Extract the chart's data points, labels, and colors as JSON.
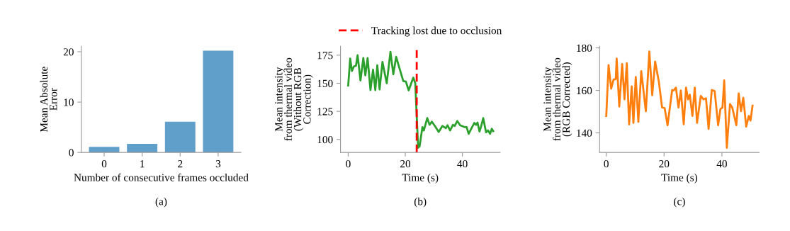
{
  "chart_data": [
    {
      "type": "bar",
      "categories": [
        "0",
        "1",
        "2",
        "3"
      ],
      "values": [
        1.1,
        1.7,
        6.1,
        20.2
      ],
      "color": "#619fcb",
      "ylabel": "Mean Absolute\nError",
      "xlabel": "Number of consecutive frames occluded",
      "annotations": [
        "(a)"
      ],
      "ylim": [
        0,
        21.1
      ],
      "yticks": [
        0,
        10,
        20
      ],
      "grid": false,
      "legend": false
    },
    {
      "type": "line",
      "xlabel": "Time (s)",
      "ylabel": "Mean intensity\nfrom thermal video\n(Without RGB\nCorrection)",
      "annotations": [
        "(b)"
      ],
      "x": [
        0,
        0.7,
        1.3,
        2,
        2.7,
        3.3,
        4.3,
        5.3,
        6,
        6.8,
        7.8,
        8.7,
        9.5,
        10.2,
        11,
        12,
        13.5,
        14.8,
        15.8,
        16.8,
        18,
        19.3,
        20.2,
        21.2,
        22.8,
        23.5,
        24,
        24.5,
        25,
        26,
        26.5,
        27.7,
        28.5,
        29.3,
        30.5,
        31.7,
        33,
        34.2,
        34.8,
        35.7,
        36.7,
        37.3,
        38.2,
        39.2,
        40.7,
        41.5,
        42.2,
        43.3,
        44.2,
        44.8,
        45.3,
        46,
        46.5,
        47.3,
        48.3,
        49,
        49.7,
        50.3,
        50.8
      ],
      "series": [
        {
          "color": "#2ca02c",
          "values": [
            148,
            172,
            161,
            165,
            165.5,
            175,
            152.5,
            172.5,
            157,
            172.5,
            144,
            162,
            144,
            166,
            144.5,
            169,
            150,
            178,
            158,
            173.5,
            163,
            152,
            151.5,
            143.7,
            155,
            150,
            121,
            92.6,
            93.7,
            111,
            108,
            119,
            113,
            115.8,
            111.5,
            106.7,
            112,
            110,
            112.6,
            108,
            113,
            112,
            116.4,
            112.6,
            111,
            111,
            105,
            110.5,
            114.7,
            113,
            115,
            107,
            111,
            119,
            106.3,
            108,
            105,
            109.5,
            107.4
          ]
        }
      ],
      "ref_lines": [
        {
          "axis": "x",
          "value": 24,
          "label": "Tracking lost due to occlusion",
          "color": "#ff0000",
          "line_style": "dashed"
        }
      ],
      "xlim": [
        -2.7,
        53.2
      ],
      "xticks": [
        0,
        20,
        40
      ],
      "ylim": [
        88.4,
        183
      ],
      "yticks": [
        100,
        125,
        150,
        175
      ],
      "grid": false,
      "legend": "top",
      "line_style": "solid",
      "marker": "none"
    },
    {
      "type": "line",
      "xlabel": "Time (s)",
      "ylabel": "Mean intensity\nfrom thermal video\n(RGB Corrected)",
      "annotations": [
        "(c)"
      ],
      "x": [
        0,
        0.8,
        1.7,
        2.5,
        3.3,
        3.6,
        4.5,
        5.5,
        6.3,
        7.1,
        7.9,
        8.8,
        9.4,
        10.2,
        11.1,
        12.1,
        13.7,
        14.9,
        15.9,
        16.9,
        18.2,
        19.3,
        20.2,
        21.2,
        22.8,
        23.3,
        24.1,
        25,
        25.8,
        26.8,
        27.6,
        28.3,
        28.9,
        29.8,
        30.6,
        31.4,
        32.7,
        33.6,
        34.5,
        35.4,
        36.5,
        37.5,
        38.7,
        39.5,
        40.2,
        40.8,
        41.7,
        42.8,
        43.6,
        45,
        45.8,
        46.6,
        47.4,
        48.4,
        49.3,
        49.9,
        50.6
      ],
      "series": [
        {
          "color": "#ff7f0e",
          "values": [
            148,
            171.9,
            160.8,
            165,
            165.4,
            175,
            152.4,
            172.4,
            155.8,
            172.8,
            144,
            161.9,
            144.7,
            166.3,
            145.2,
            169.1,
            150.2,
            178.3,
            157.7,
            173.6,
            164,
            152,
            151.7,
            143.6,
            160.2,
            160,
            161.3,
            151.9,
            160,
            144.1,
            161.3,
            155.8,
            158,
            148,
            161.3,
            144.7,
            157.4,
            155.8,
            156.3,
            141.9,
            160.2,
            159.7,
            143.6,
            151.3,
            151.9,
            164.7,
            133,
            153.6,
            151.9,
            143.6,
            158.6,
            150.2,
            156.6,
            143,
            148,
            145.8,
            152.8
          ]
        }
      ],
      "xlim": [
        -2.3,
        52.9
      ],
      "xticks": [
        0,
        20,
        40
      ],
      "ylim": [
        130.8,
        180.8
      ],
      "yticks": [
        140,
        160,
        180
      ],
      "grid": false,
      "legend": false,
      "line_style": "solid",
      "marker": "none"
    }
  ]
}
